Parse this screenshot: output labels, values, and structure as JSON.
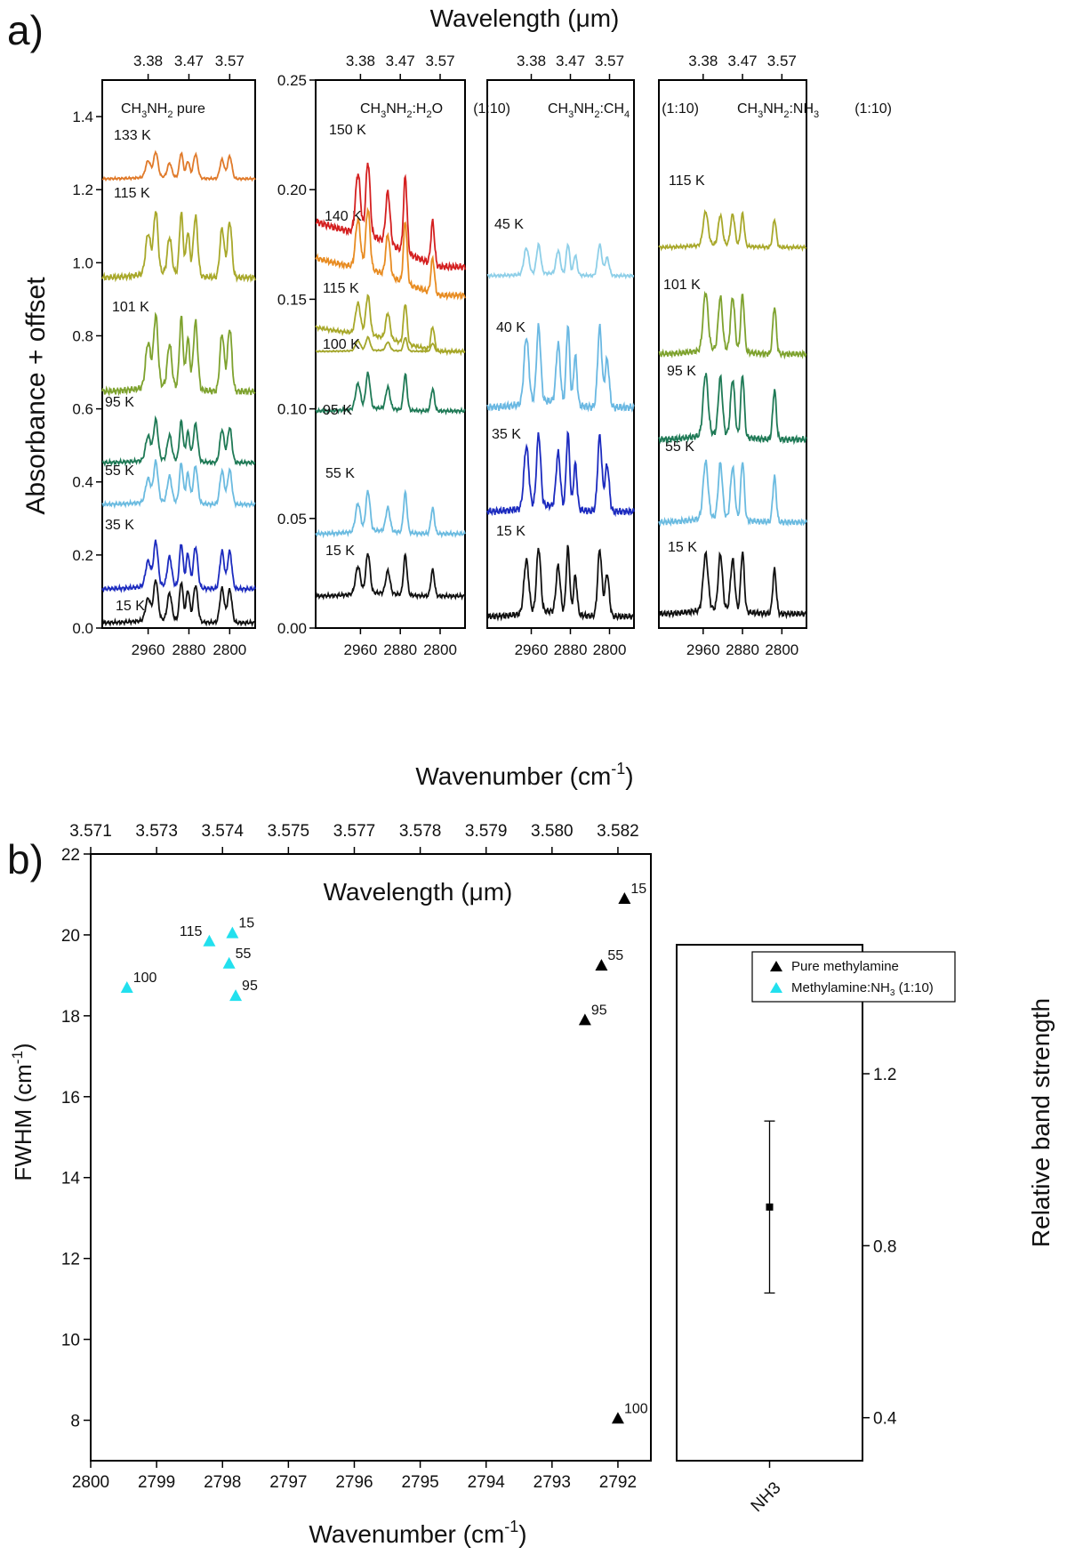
{
  "figure": {
    "panel_a_label": "a)",
    "panel_b_label": "b)",
    "panel_a": {
      "top_axis_title": "Wavelength (μm)",
      "bottom_axis_title_main": "Wavenumber (cm",
      "bottom_axis_title_sup": "-1",
      "bottom_axis_title_end": ")",
      "y_axis_title": "Absorbance + offset"
    },
    "panel_b": {
      "top_axis_title": "Wavelength (μm)",
      "x_axis_title_main": "Wavenumber (cm",
      "x_axis_title_sup": "-1",
      "x_axis_title_end": ")",
      "y_axis_title_main": "FWHM (cm",
      "y_axis_title_sup": "-1",
      "y_axis_title_end": ")",
      "right_axis_title": "Relative band strength"
    }
  },
  "colors": {
    "133 K": "#e07a2a",
    "115 K": "#a8a82a",
    "101 K": "#7ea22e",
    "95 K": "#1f7a56",
    "55 K": "#6bbbe0",
    "35 K": "#1c2bbf",
    "15 K": "#111111",
    "150 K": "#d42020",
    "140 K": "#e88c22",
    "100 K": "#a4a62c",
    "45 K": "#8ecfe8",
    "40 K": "#6ab8e2",
    "cyan": "#22e0ee",
    "black": "#000000"
  },
  "chart_data": [
    {
      "type": "line",
      "title": "CH3NH2 pure",
      "title_parts": {
        "a": "CH",
        "s1": "3",
        "b": "NH",
        "s2": "2",
        "c": " pure"
      },
      "xlabel": "Wavenumber (cm-1)",
      "ylabel": "Absorbance + offset",
      "xlim": [
        3050,
        2750
      ],
      "ylim": [
        0,
        1.5
      ],
      "x_ticks": [
        2960,
        2880,
        2800
      ],
      "y_ticks": [
        0.0,
        0.2,
        0.4,
        0.6,
        0.8,
        1.0,
        1.2,
        1.4
      ],
      "top_ticks": [
        "3.38",
        "3.47",
        "3.57"
      ],
      "peaks": [
        2960,
        2945,
        2918,
        2895,
        2882,
        2867,
        2815,
        2800
      ],
      "series": [
        {
          "name": "15 K",
          "offset": 0.0,
          "scale": 0.9
        },
        {
          "name": "35 K",
          "offset": 0.1,
          "scale": 0.9
        },
        {
          "name": "55 K",
          "offset": 0.25,
          "scale": 1.0
        },
        {
          "name": "95 K",
          "offset": 0.42,
          "scale": 1.0
        },
        {
          "name": "101 K",
          "offset": 0.62,
          "scale": 3.0
        },
        {
          "name": "115 K",
          "offset": 0.95,
          "scale": 2.8
        },
        {
          "name": "133 K",
          "offset": 1.22,
          "scale": 1.5
        }
      ]
    },
    {
      "type": "line",
      "title": "CH3NH2:H2O (1:10)",
      "title_parts": {
        "a": "CH",
        "s1": "3",
        "b": "NH",
        "s2": "2",
        "c": ":H",
        "s3": "2",
        "d": "O",
        "ratio": "(1:10)"
      },
      "xlim": [
        3050,
        2750
      ],
      "ylim": [
        0,
        0.25
      ],
      "x_ticks": [
        2960,
        2880,
        2800
      ],
      "y_ticks": [
        0.0,
        0.05,
        0.1,
        0.15,
        0.2,
        0.25
      ],
      "top_ticks": [
        "3.38",
        "3.47",
        "3.57"
      ],
      "peaks": [
        2965,
        2945,
        2905,
        2870,
        2815
      ],
      "series": [
        {
          "name": "15 K",
          "offset": 0.012,
          "scale": 0.012
        },
        {
          "name": "55 K",
          "offset": 0.042,
          "scale": 0.014
        },
        {
          "name": "95 K",
          "offset": 0.068,
          "scale": 0.02
        },
        {
          "name": "100 K",
          "offset": 0.12,
          "scale": 0.02
        },
        {
          "name": "115 K",
          "offset": 0.147,
          "scale": 0.015
        },
        {
          "name": "140 K",
          "offset": 0.16,
          "scale": 0.02
        },
        {
          "name": "150 K",
          "offset": 0.165,
          "scale": 0.05
        }
      ]
    },
    {
      "type": "line",
      "title": "CH3NH2:CH4 (1:10)",
      "title_parts": {
        "a": "CH",
        "s1": "3",
        "b": "NH",
        "s2": "2",
        "c": ":CH",
        "s3": "4",
        "ratio": "(1:10)"
      },
      "xlim": [
        3050,
        2750
      ],
      "x_ticks": [
        2960,
        2880,
        2800
      ],
      "top_ticks": [
        "3.38",
        "3.47",
        "3.57"
      ],
      "peaks": [
        2970,
        2945,
        2905,
        2885,
        2870,
        2820,
        2805
      ],
      "series": [
        {
          "name": "15 K",
          "offset": 0.0,
          "scale": 1.0
        },
        {
          "name": "35 K",
          "offset": 1.0,
          "scale": 1.0
        },
        {
          "name": "40 K",
          "offset": 2.0,
          "scale": 1.0
        },
        {
          "name": "45 K",
          "offset": 3.1,
          "scale": 0.5
        }
      ]
    },
    {
      "type": "line",
      "title": "CH3NH2:NH3 (1:10)",
      "title_parts": {
        "a": "CH",
        "s1": "3",
        "b": "NH",
        "s2": "2",
        "c": ":NH",
        "s3": "3",
        "ratio": "(1:10)"
      },
      "xlim": [
        3050,
        2750
      ],
      "x_ticks": [
        2960,
        2880,
        2800
      ],
      "top_ticks": [
        "3.38",
        "3.47",
        "3.57"
      ],
      "peaks": [
        2955,
        2925,
        2900,
        2880,
        2815
      ],
      "series": [
        {
          "name": "15 K",
          "offset": 0.0,
          "scale": 1.0
        },
        {
          "name": "55 K",
          "offset": 1.0,
          "scale": 1.0
        },
        {
          "name": "95 K",
          "offset": 2.0,
          "scale": 1.0
        },
        {
          "name": "101 K",
          "offset": 3.0,
          "scale": 1.0
        },
        {
          "name": "115 K",
          "offset": 4.0,
          "scale": 0.8
        }
      ]
    },
    {
      "type": "scatter",
      "xlabel": "Wavenumber (cm-1)",
      "ylabel": "FWHM (cm-1)",
      "xlim": [
        2800,
        2791.5
      ],
      "ylim": [
        7,
        22
      ],
      "x_ticks": [
        2800,
        2799,
        2798,
        2797,
        2796,
        2795,
        2794,
        2793,
        2792
      ],
      "y_ticks": [
        8,
        10,
        12,
        14,
        16,
        18,
        20,
        22
      ],
      "top_tick_positions": [
        2800,
        2799,
        2798,
        2797,
        2796,
        2795,
        2794,
        2793,
        2792
      ],
      "top_tick_labels": [
        "3.571",
        "3.573",
        "3.574",
        "3.575",
        "3.577",
        "3.578",
        "3.579",
        "3.580",
        "3.582"
      ],
      "legend": [
        "Pure methylamine",
        "Methylamine:NH3 (1:10)"
      ],
      "legend_ch4_suffix": {
        "a": "Methylamine:NH",
        "s": "3",
        "b": " (1:10)"
      },
      "legend_placement": "top-right",
      "series": [
        {
          "name": "Pure methylamine",
          "color": "#000000",
          "points": [
            {
              "x": 2791.9,
              "y": 20.9,
              "label": "15"
            },
            {
              "x": 2792.25,
              "y": 19.25,
              "label": "55"
            },
            {
              "x": 2792.5,
              "y": 17.9,
              "label": "95"
            },
            {
              "x": 2792.0,
              "y": 8.05,
              "label": "100"
            }
          ]
        },
        {
          "name": "Methylamine:NH3 (1:10)",
          "color": "#22e0ee",
          "points": [
            {
              "x": 2797.85,
              "y": 20.05,
              "label": "15"
            },
            {
              "x": 2797.9,
              "y": 19.3,
              "label": "55"
            },
            {
              "x": 2797.8,
              "y": 18.5,
              "label": "95"
            },
            {
              "x": 2799.45,
              "y": 18.7,
              "label": "100"
            },
            {
              "x": 2798.2,
              "y": 19.85,
              "label": "115"
            }
          ]
        }
      ]
    },
    {
      "type": "scatter",
      "ylabel": "Relative band strength",
      "categories": [
        "NH3"
      ],
      "values": [
        0.89
      ],
      "error": [
        0.2
      ],
      "ylim": [
        0.3,
        1.5
      ],
      "y_ticks": [
        0.4,
        0.8,
        1.2
      ]
    }
  ]
}
